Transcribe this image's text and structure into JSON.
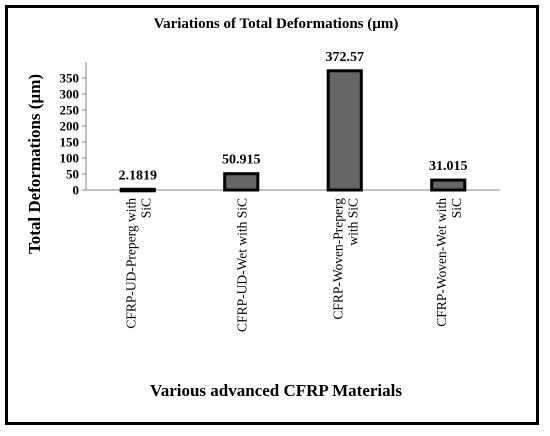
{
  "chart_data": {
    "type": "bar",
    "title": "Variations of Total Deformations (µm)",
    "xlabel": "Various advanced CFRP Materials",
    "ylabel": "Total Deformations (µm)",
    "categories": [
      [
        "CFRP-UD-Preperg with",
        "SiC"
      ],
      [
        "CFRP-UD-Wet with SiC"
      ],
      [
        "CFRP-Woven-Preperg",
        "with SiC"
      ],
      [
        "CFRP-Woven-Wet with",
        "SiC"
      ]
    ],
    "values": [
      2.1819,
      50.915,
      372.57,
      31.015
    ],
    "data_labels": [
      "2.1819",
      "50.915",
      "372.57",
      "31.015"
    ],
    "yticks": [
      0,
      50,
      100,
      150,
      200,
      250,
      300,
      350
    ],
    "ylim": [
      0,
      400
    ],
    "grid": false,
    "legend": "none",
    "bar_color": "#666666",
    "bar_edge_color": "#000000"
  }
}
